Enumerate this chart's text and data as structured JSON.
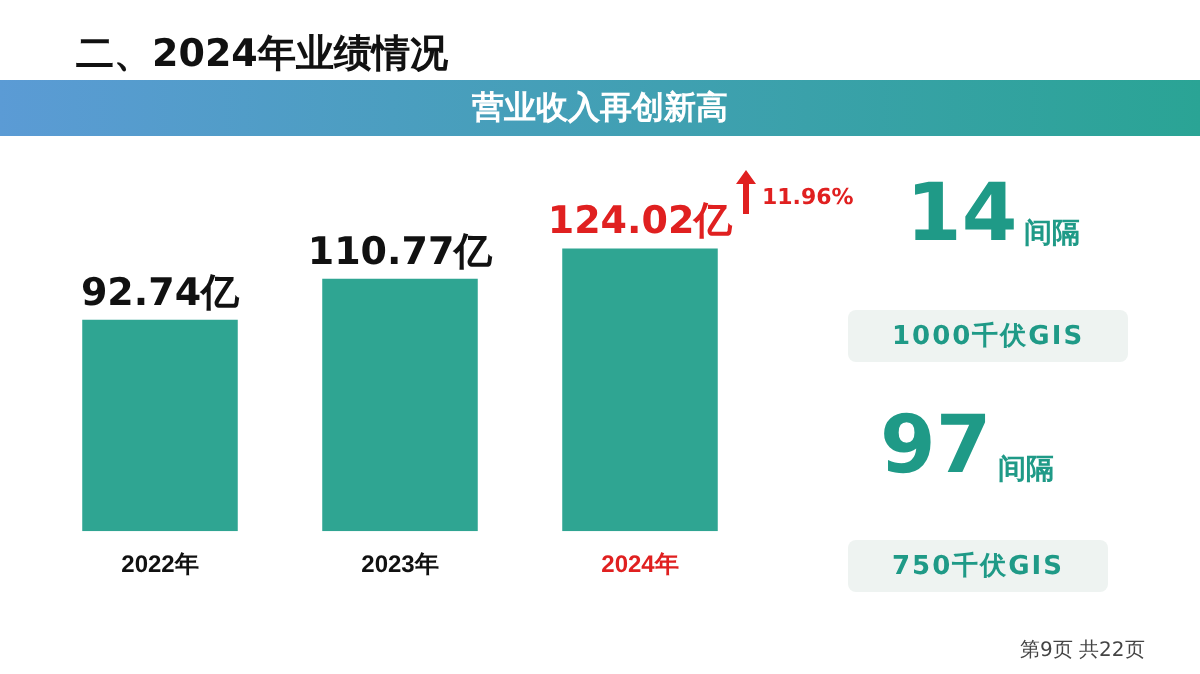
{
  "chart_data": {
    "type": "bar",
    "title": "二、2024年业绩情况",
    "subtitle": "营业收入再创新高",
    "categories": [
      "2022年",
      "2023年",
      "2024年"
    ],
    "values": [
      92.74,
      110.77,
      124.02
    ],
    "value_labels": [
      "92.74亿",
      "110.77亿",
      "124.02亿"
    ],
    "color": "#2fa592",
    "tick_labels": "x",
    "grid": false,
    "legend": false,
    "annotations": [
      "11.96%",
      "14",
      "间隔",
      "1000千伏GIS",
      "97",
      "间隔",
      "750千伏GIS",
      "第9页 共22页"
    ]
  }
}
